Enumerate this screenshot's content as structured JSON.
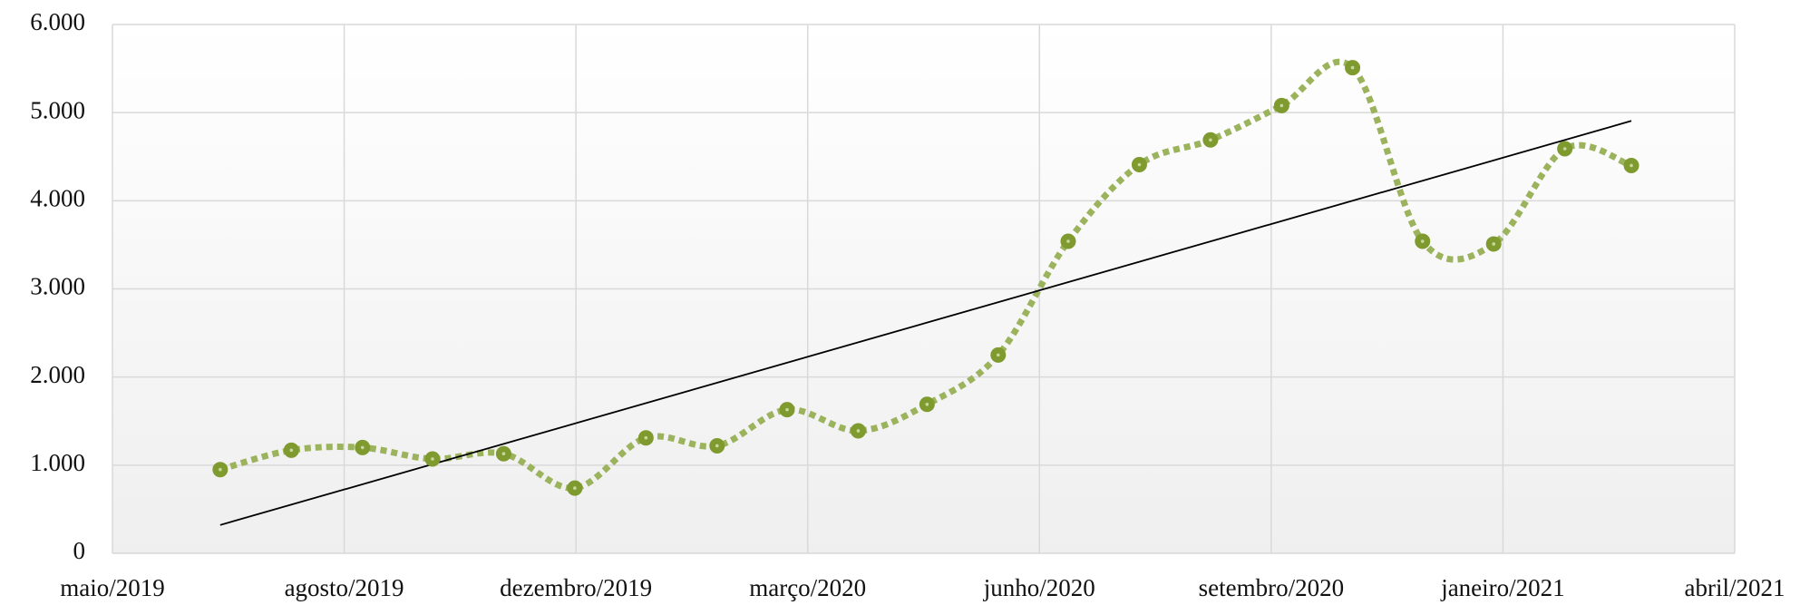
{
  "chart_data": {
    "type": "line",
    "xlim": [
      0,
      7
    ],
    "xticks": [
      {
        "value": 0,
        "label": "maio/2019"
      },
      {
        "value": 1,
        "label": "agosto/2019"
      },
      {
        "value": 2,
        "label": "dezembro/2019"
      },
      {
        "value": 3,
        "label": "março/2020"
      },
      {
        "value": 4,
        "label": "junho/2020"
      },
      {
        "value": 5,
        "label": "setembro/2020"
      },
      {
        "value": 6,
        "label": "janeiro/2021"
      },
      {
        "value": 7,
        "label": "abril/2021"
      }
    ],
    "x": [
      0.465,
      0.772,
      1.079,
      1.381,
      1.688,
      1.995,
      2.302,
      2.609,
      2.911,
      3.218,
      3.515,
      3.822,
      4.124,
      4.431,
      4.738,
      5.045,
      5.351,
      5.653,
      5.96,
      6.267,
      6.554
    ],
    "series": [
      {
        "color": "#7f9a2e",
        "values": [
          950,
          1170,
          1200,
          1070,
          1130,
          740,
          1310,
          1220,
          1630,
          1390,
          1690,
          2250,
          3540,
          4410,
          4690,
          5080,
          5510,
          3540,
          3510,
          4590,
          4400
        ]
      }
    ],
    "ylim": [
      0,
      6000
    ],
    "yticks": [
      0,
      {
        "value": 1000,
        "label": "1.000"
      },
      {
        "value": 2000,
        "label": "2.000"
      },
      {
        "value": 3000,
        "label": "3.000"
      },
      {
        "value": 4000,
        "label": "4.000"
      },
      {
        "value": 5000,
        "label": "5.000"
      },
      {
        "value": 6000,
        "label": "6.000"
      }
    ],
    "grid": true,
    "trendline": true
  }
}
